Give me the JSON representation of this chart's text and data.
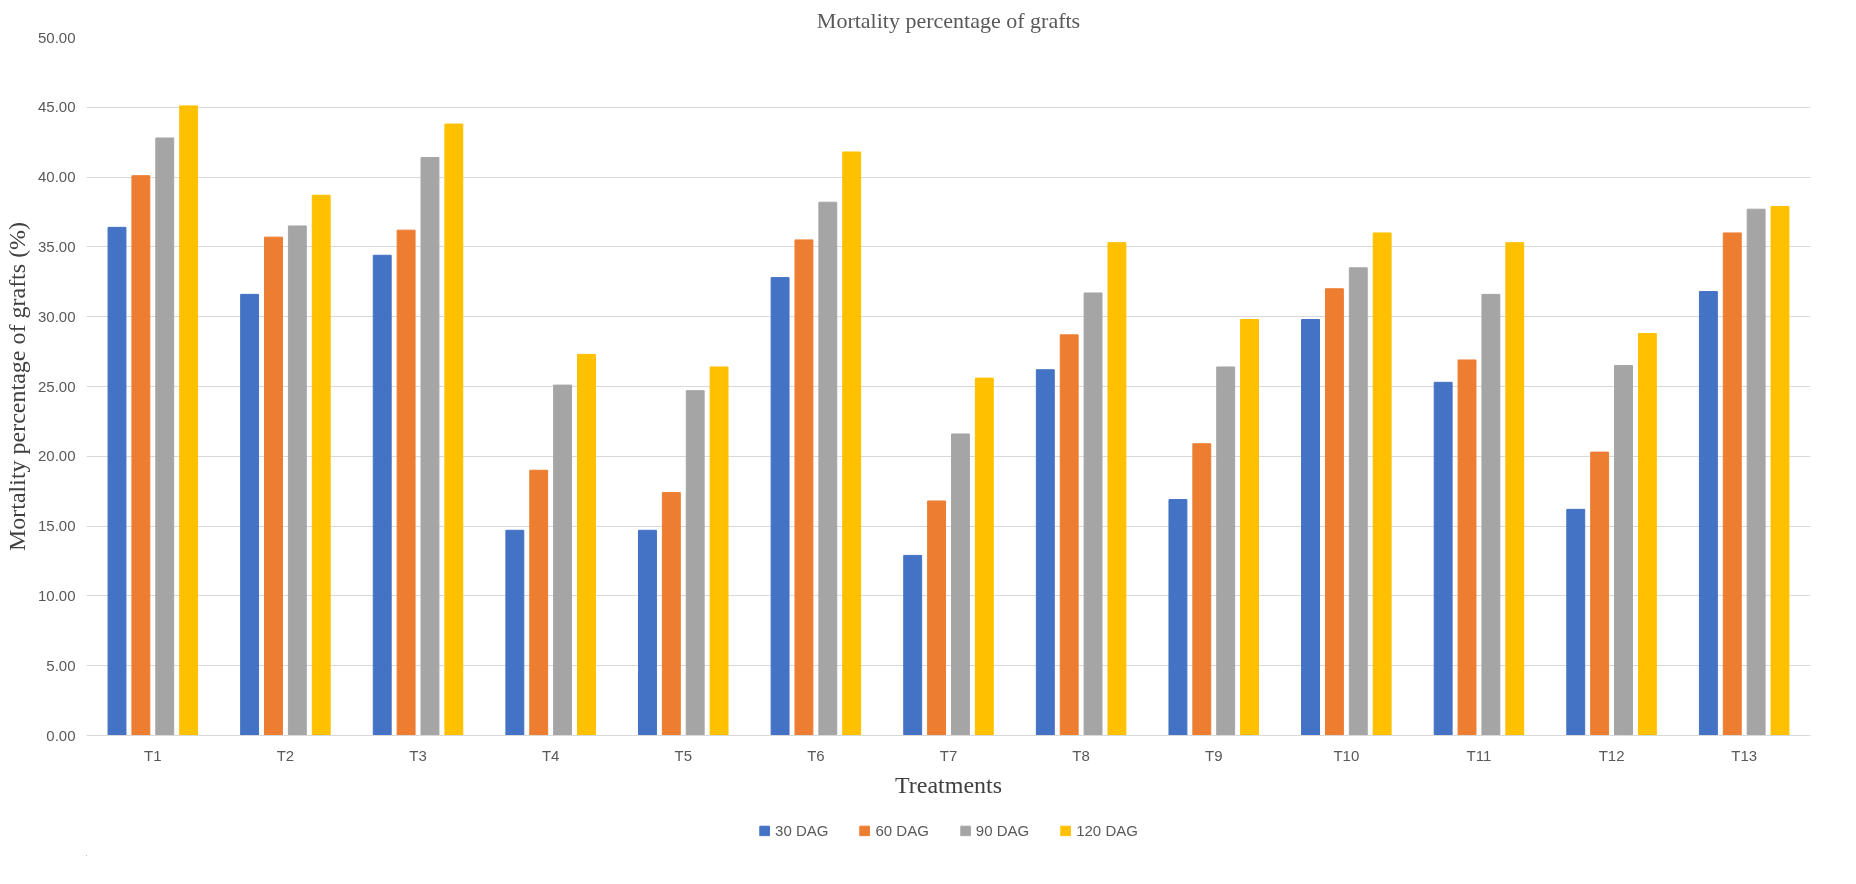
{
  "chart_data": {
    "type": "bar",
    "title": "Mortality percentage of grafts",
    "xlabel": "Treatments",
    "ylabel": "Mortality percentage of grafts (%)",
    "categories": [
      "T1",
      "T2",
      "T3",
      "T4",
      "T5",
      "T6",
      "T7",
      "T8",
      "T9",
      "T10",
      "T11",
      "T12",
      "T13"
    ],
    "series": [
      {
        "name": "30 DAG",
        "color": "#4472c4",
        "values": [
          36.4,
          31.6,
          34.4,
          14.7,
          14.7,
          32.8,
          12.9,
          26.2,
          16.9,
          29.8,
          25.3,
          16.2,
          31.8
        ]
      },
      {
        "name": "60 DAG",
        "color": "#ed7d31",
        "values": [
          40.1,
          35.7,
          36.2,
          19.0,
          17.4,
          35.5,
          16.8,
          28.7,
          20.9,
          32.0,
          26.9,
          20.3,
          36.0
        ]
      },
      {
        "name": "90 DAG",
        "color": "#a5a5a5",
        "values": [
          42.8,
          36.5,
          41.4,
          25.1,
          24.7,
          38.2,
          21.6,
          31.7,
          26.4,
          33.5,
          31.6,
          26.5,
          37.7
        ]
      },
      {
        "name": "120 DAG",
        "color": "#ffc000",
        "values": [
          45.1,
          38.7,
          43.8,
          27.3,
          26.4,
          41.8,
          25.6,
          35.3,
          29.8,
          36.0,
          35.3,
          28.8,
          37.9
        ]
      }
    ],
    "ylim": [
      0,
      50
    ],
    "yticks": [
      {
        "value": 0,
        "label": "0.00"
      },
      {
        "value": 5,
        "label": "5.00"
      },
      {
        "value": 10,
        "label": "10.00"
      },
      {
        "value": 15,
        "label": "15.00"
      },
      {
        "value": 20,
        "label": "20.00"
      },
      {
        "value": 25,
        "label": "25.00"
      },
      {
        "value": 30,
        "label": "30.00"
      },
      {
        "value": 35,
        "label": "35.00"
      },
      {
        "value": 40,
        "label": "40.00"
      },
      {
        "value": 45,
        "label": "45.00"
      },
      {
        "value": 50,
        "label": "50.00"
      }
    ],
    "grid": "y",
    "legend": "bottom"
  }
}
